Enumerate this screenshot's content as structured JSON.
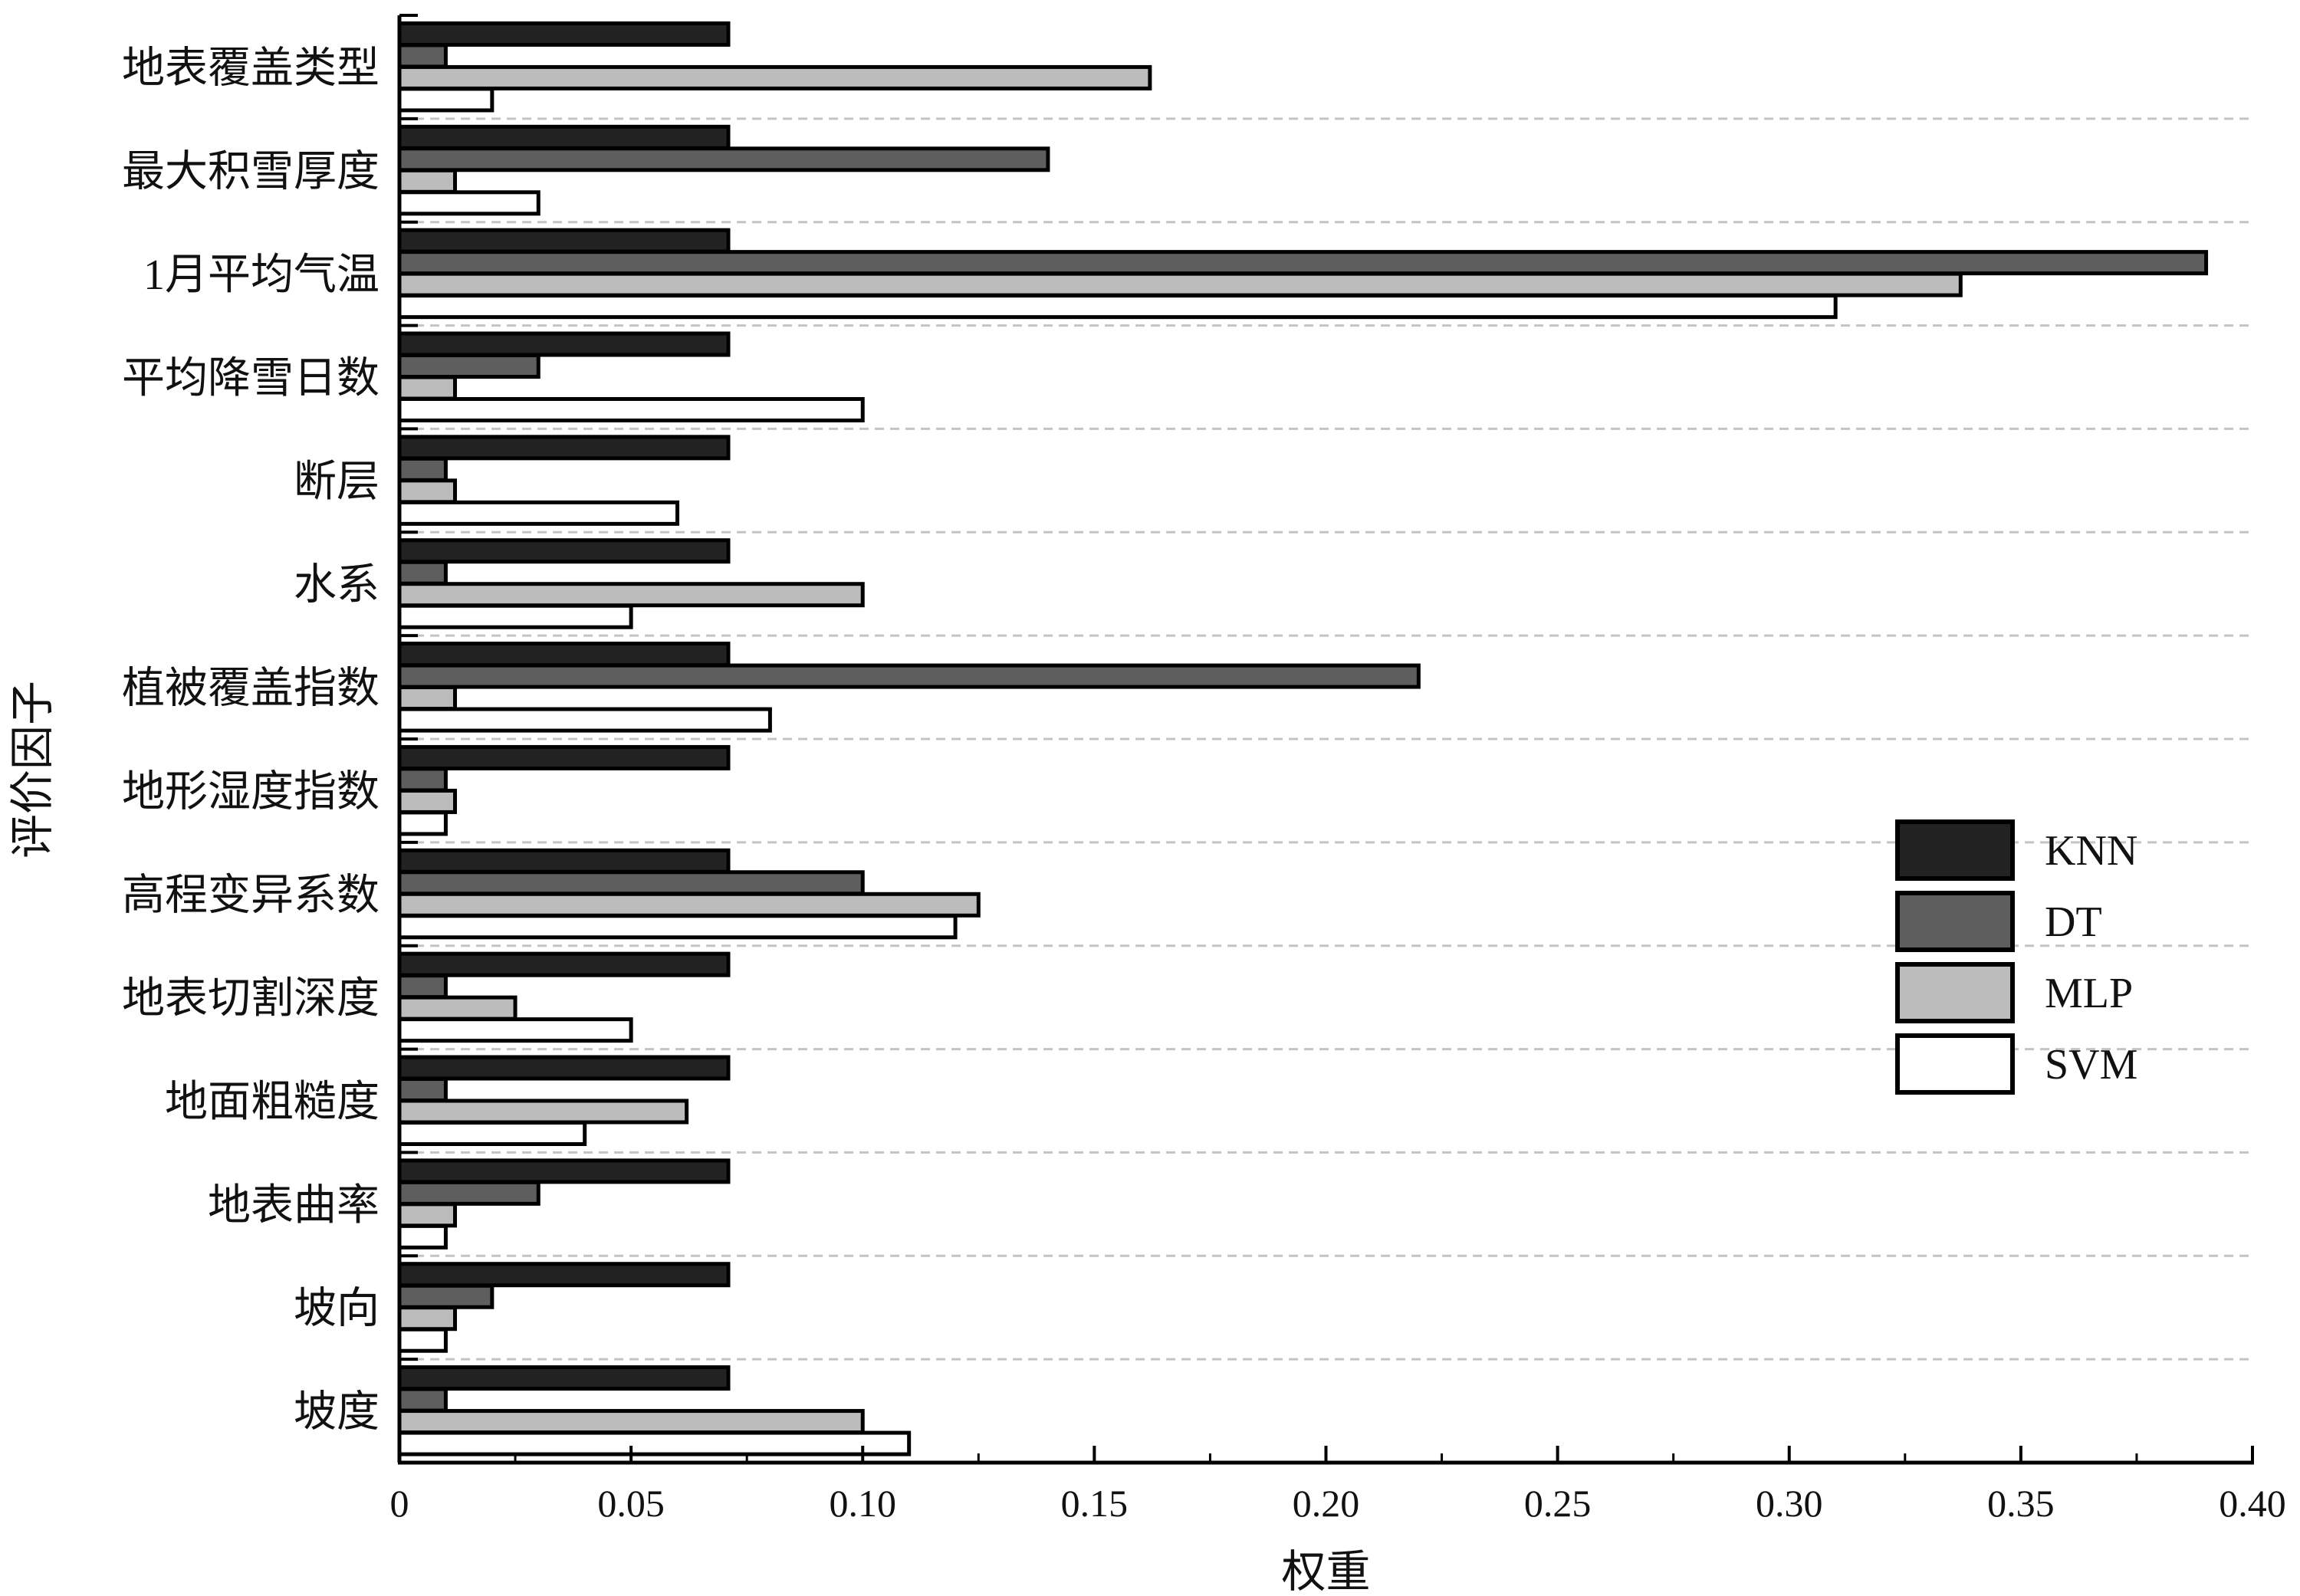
{
  "chart_data": {
    "type": "bar",
    "orientation": "horizontal",
    "categories": [
      "地表覆盖类型",
      "最大积雪厚度",
      "1月平均气温",
      "平均降雪日数",
      "断层",
      "水系",
      "植被覆盖指数",
      "地形湿度指数",
      "高程变异系数",
      "地表切割深度",
      "地面粗糙度",
      "地表曲率",
      "坡向",
      "坡度"
    ],
    "series": [
      {
        "name": "KNN",
        "color": "#222222",
        "values": [
          0.071,
          0.071,
          0.071,
          0.071,
          0.071,
          0.071,
          0.071,
          0.071,
          0.071,
          0.071,
          0.071,
          0.071,
          0.071,
          0.071
        ]
      },
      {
        "name": "DT",
        "color": "#5e5e5e",
        "values": [
          0.01,
          0.14,
          0.39,
          0.03,
          0.01,
          0.01,
          0.22,
          0.01,
          0.1,
          0.01,
          0.01,
          0.03,
          0.02,
          0.01
        ]
      },
      {
        "name": "MLP",
        "color": "#bcbcbc",
        "values": [
          0.162,
          0.012,
          0.337,
          0.012,
          0.012,
          0.1,
          0.012,
          0.012,
          0.125,
          0.025,
          0.062,
          0.012,
          0.012,
          0.1
        ]
      },
      {
        "name": "SVM",
        "color": "#ffffff",
        "values": [
          0.02,
          0.03,
          0.31,
          0.1,
          0.06,
          0.05,
          0.08,
          0.01,
          0.12,
          0.05,
          0.04,
          0.01,
          0.01,
          0.11
        ]
      }
    ],
    "xlabel": "权重",
    "ylabel": "评价因子",
    "xlim": [
      0,
      0.4
    ],
    "xticks": [
      "0",
      "0.05",
      "0.10",
      "0.15",
      "0.20",
      "0.25",
      "0.30",
      "0.35",
      "0.40"
    ],
    "grid": "dashed horizontal separators between categories",
    "legend_position": "right"
  }
}
